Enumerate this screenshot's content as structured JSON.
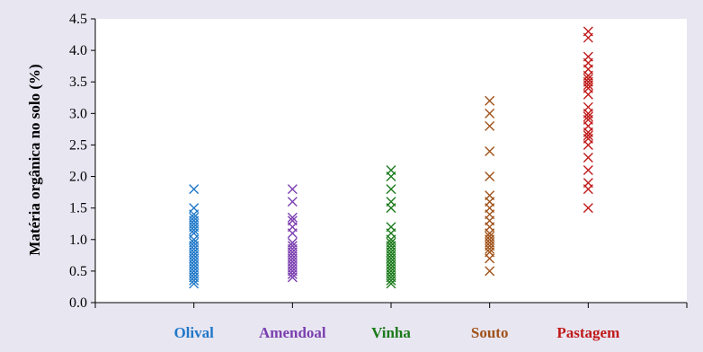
{
  "chart_data": {
    "type": "scatter",
    "ylabel": "Matéria orgânica no solo (%)",
    "xlabel": "",
    "ylim": [
      0,
      4.5
    ],
    "yticks": [
      "0.0",
      "0.5",
      "1.0",
      "1.5",
      "2.0",
      "2.5",
      "3.0",
      "3.5",
      "4.0",
      "4.5"
    ],
    "grid": false,
    "marker": "x",
    "categories": [
      "Olival",
      "Amendoal",
      "Vinha",
      "Souto",
      "Pastagem"
    ],
    "series": [
      {
        "category": "Olival",
        "color": "#1f78c8",
        "values": [
          1.8,
          1.5,
          1.4,
          1.35,
          1.3,
          1.25,
          1.2,
          1.15,
          1.1,
          1.0,
          0.95,
          0.9,
          0.85,
          0.8,
          0.75,
          0.7,
          0.65,
          0.6,
          0.55,
          0.5,
          0.45,
          0.4,
          0.35,
          0.3
        ]
      },
      {
        "category": "Amendoal",
        "color": "#7b3fb0",
        "values": [
          1.8,
          1.6,
          1.35,
          1.3,
          1.2,
          1.1,
          0.95,
          0.9,
          0.85,
          0.8,
          0.75,
          0.7,
          0.65,
          0.6,
          0.55,
          0.5,
          0.45,
          0.4
        ]
      },
      {
        "category": "Vinha",
        "color": "#1a7a1a",
        "values": [
          2.1,
          2.0,
          1.8,
          1.6,
          1.5,
          1.2,
          1.1,
          1.0,
          0.95,
          0.9,
          0.85,
          0.8,
          0.75,
          0.7,
          0.65,
          0.6,
          0.55,
          0.5,
          0.45,
          0.4,
          0.35,
          0.3
        ]
      },
      {
        "category": "Souto",
        "color": "#a0521a",
        "values": [
          3.2,
          3.0,
          2.8,
          2.4,
          2.0,
          1.7,
          1.6,
          1.5,
          1.4,
          1.3,
          1.2,
          1.1,
          1.05,
          1.0,
          0.95,
          0.9,
          0.85,
          0.8,
          0.7,
          0.5
        ]
      },
      {
        "category": "Pastagem",
        "color": "#c01a1a",
        "values": [
          4.3,
          4.2,
          3.9,
          3.8,
          3.7,
          3.6,
          3.55,
          3.5,
          3.45,
          3.4,
          3.3,
          3.1,
          3.0,
          2.95,
          2.9,
          2.8,
          2.7,
          2.65,
          2.6,
          2.5,
          2.3,
          2.1,
          1.9,
          1.8,
          1.5
        ]
      }
    ]
  }
}
